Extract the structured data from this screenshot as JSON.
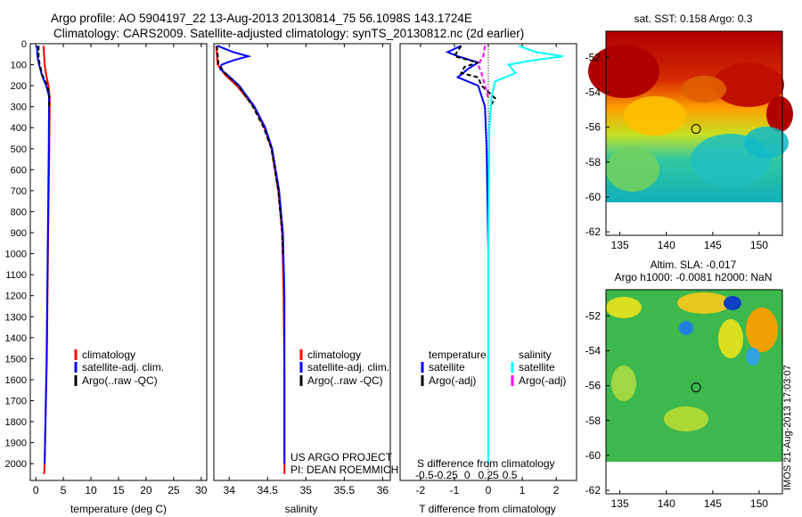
{
  "header": {
    "line1": "Argo profile: AO 5904197_22 13-Aug-2013 20130814_75 56.1098S 143.1724E",
    "line2": "Climatology: CARS2009. Satellite-adjusted climatology: synTS_20130812.nc (2d earlier)"
  },
  "side_stamp": "IMOS 21-Aug-2013 17:03:07",
  "colors": {
    "climatology": "#ff0000",
    "satellite": "#0000ff",
    "argo": "#000000",
    "sal_satellite": "#00ffff",
    "sal_argo": "#ff00ff"
  },
  "chart_data": [
    {
      "id": "temperature",
      "type": "line",
      "xlabel": "temperature (deg C)",
      "ylabel": "",
      "xlim": [
        -1,
        31
      ],
      "ylim": [
        2080,
        0
      ],
      "xticks": [
        0,
        5,
        10,
        15,
        20,
        25,
        30
      ],
      "yticks": [
        0,
        100,
        200,
        300,
        400,
        500,
        600,
        700,
        800,
        900,
        1000,
        1100,
        1200,
        1300,
        1400,
        1500,
        1600,
        1700,
        1800,
        1900,
        2000
      ],
      "legend": [
        "climatology",
        "satellite-adj. clim.",
        "Argo(..raw -QC)"
      ],
      "series": [
        {
          "name": "climatology",
          "color": "#ff0000",
          "depth": [
            10,
            60,
            100,
            150,
            200,
            250,
            300,
            500,
            1000,
            1500,
            2000,
            2050
          ],
          "values": [
            1.4,
            1.5,
            1.6,
            1.9,
            2.3,
            2.5,
            2.5,
            2.45,
            2.2,
            2.0,
            1.6,
            1.5
          ]
        },
        {
          "name": "satellite-adj. clim.",
          "color": "#0000ff",
          "depth": [
            10,
            60,
            100,
            150,
            200,
            250,
            300,
            500,
            1000,
            1500,
            2000
          ],
          "values": [
            0.2,
            0.3,
            0.6,
            1.1,
            1.9,
            2.4,
            2.4,
            2.35,
            2.15,
            1.95,
            1.6
          ]
        },
        {
          "name": "Argo(..raw -QC)",
          "color": "#000000",
          "dashed": true,
          "depth": [
            10,
            60,
            100,
            150,
            200,
            250,
            300
          ],
          "values": [
            0.5,
            0.5,
            0.7,
            1.2,
            2.1,
            2.45,
            2.4
          ]
        }
      ]
    },
    {
      "id": "salinity",
      "type": "line",
      "xlabel": "salinity",
      "ylabel": "",
      "xlim": [
        33.8,
        36.1
      ],
      "ylim": [
        2080,
        0
      ],
      "xticks": [
        34,
        34.5,
        35,
        35.5,
        36
      ],
      "legend": [
        "climatology",
        "satellite-adj. clim.",
        "Argo(..raw -QC)"
      ],
      "annotations": [
        "US ARGO PROJECT",
        "PI: DEAN ROEMMICH"
      ],
      "series": [
        {
          "name": "climatology",
          "color": "#ff0000",
          "depth": [
            10,
            100,
            150,
            200,
            300,
            400,
            500,
            700,
            900,
            1200,
            1600,
            2050
          ],
          "values": [
            33.83,
            33.85,
            33.95,
            34.1,
            34.32,
            34.46,
            34.55,
            34.64,
            34.69,
            34.71,
            34.72,
            34.72
          ]
        },
        {
          "name": "satellite-adj. clim.",
          "color": "#0000ff",
          "depth": [
            10,
            40,
            60,
            80,
            100,
            120,
            150,
            200,
            300,
            400,
            500,
            700,
            900,
            1200,
            1600,
            2000
          ],
          "values": [
            33.85,
            34.05,
            34.25,
            34.05,
            33.9,
            33.88,
            33.98,
            34.13,
            34.33,
            34.47,
            34.56,
            34.65,
            34.7,
            34.72,
            34.72,
            34.72
          ]
        },
        {
          "name": "Argo(..raw -QC)",
          "color": "#000000",
          "dashed": true,
          "depth": [
            10,
            100,
            150,
            200,
            300,
            400,
            500,
            700,
            900,
            1000
          ],
          "values": [
            33.84,
            33.86,
            33.97,
            34.12,
            34.31,
            34.45,
            34.55,
            34.64,
            34.69,
            34.7
          ]
        }
      ]
    },
    {
      "id": "difference",
      "type": "line",
      "xlabel": "T difference from climatology",
      "xlabel2": "S difference from climatology",
      "xlim": [
        -2.6,
        2.6
      ],
      "ylim": [
        2080,
        0
      ],
      "xticks": [
        -2,
        -1,
        0,
        1,
        2
      ],
      "sticks": [
        -0.5,
        -0.25,
        0,
        0.25,
        0.5
      ],
      "legend_headers": [
        "temperature",
        "salinity"
      ],
      "legend": [
        "satellite",
        "Argo(-adj)",
        "satellite",
        "Argo(-adj)"
      ],
      "series": [
        {
          "name": "T satellite",
          "color": "#0000ff",
          "depth": [
            10,
            40,
            60,
            90,
            120,
            160,
            200,
            300,
            500,
            1000,
            1500,
            2000
          ],
          "values": [
            -0.8,
            -1.2,
            -0.9,
            -0.3,
            -0.6,
            -0.9,
            -0.3,
            -0.1,
            -0.05,
            0.0,
            0.0,
            0.0
          ]
        },
        {
          "name": "T Argo(-adj)",
          "color": "#000000",
          "dashed": true,
          "depth": [
            10,
            60,
            90,
            110,
            140,
            160,
            200,
            260,
            300
          ],
          "values": [
            -0.8,
            -1.0,
            -0.3,
            -0.7,
            -0.8,
            -0.3,
            -0.2,
            0.2,
            0.05
          ]
        },
        {
          "name": "S satellite",
          "color": "#00ffff",
          "depth": [
            10,
            40,
            60,
            80,
            100,
            140,
            180,
            250,
            400,
            1000,
            2000
          ],
          "values": [
            0.9,
            1.4,
            2.2,
            1.3,
            0.6,
            0.8,
            0.2,
            0.1,
            0.03,
            0.0,
            0.0
          ]
        },
        {
          "name": "S Argo(-adj)",
          "color": "#ff00ff",
          "dashed": true,
          "depth": [
            10,
            60,
            100,
            140,
            200,
            260
          ],
          "values": [
            -0.1,
            -0.15,
            -0.3,
            -0.2,
            -0.1,
            0.0
          ]
        }
      ]
    },
    {
      "id": "sst_map",
      "type": "heatmap",
      "title": "sat. SST: 0.158 Argo: 0.3",
      "xlim": [
        133.5,
        152.5
      ],
      "ylim": [
        -62.2,
        -50.5
      ],
      "xticks": [
        135,
        140,
        145,
        150
      ],
      "yticks": [
        -52,
        -54,
        -56,
        -58,
        -60,
        -62
      ],
      "data_ylim": [
        -60,
        -50.5
      ],
      "marker": [
        143.2,
        -56.1
      ]
    },
    {
      "id": "sla_map",
      "type": "heatmap",
      "title": "Altim. SLA: -0.017",
      "subtitle": "Argo h1000: -0.0081 h2000: NaN",
      "xlim": [
        133.5,
        152.5
      ],
      "ylim": [
        -62.2,
        -50.5
      ],
      "xticks": [
        135,
        140,
        145,
        150
      ],
      "yticks": [
        -52,
        -54,
        -56,
        -58,
        -60,
        -62
      ],
      "data_ylim": [
        -60,
        -50.5
      ],
      "marker": [
        143.2,
        -56.1
      ]
    }
  ]
}
